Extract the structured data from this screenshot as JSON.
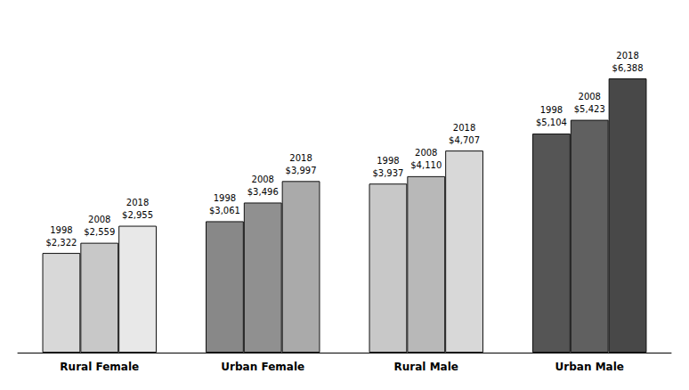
{
  "chart_data": {
    "type": "bar",
    "categories": [
      "Rural Female",
      "Urban Female",
      "Rural Male",
      "Urban Male"
    ],
    "series": [
      {
        "name": "1998",
        "values": [
          2322,
          3061,
          3937,
          5104
        ],
        "value_labels": [
          "$2,322",
          "$3,061",
          "$3,937",
          "$5,104"
        ],
        "colors": [
          "#d8d8d8",
          "#888888",
          "#c8c8c8",
          "#555555"
        ]
      },
      {
        "name": "2008",
        "values": [
          2559,
          3496,
          4110,
          5423
        ],
        "value_labels": [
          "$2,559",
          "$3,496",
          "$4,110",
          "$5,423"
        ],
        "colors": [
          "#c8c8c8",
          "#909090",
          "#b8b8b8",
          "#606060"
        ]
      },
      {
        "name": "2018",
        "values": [
          2955,
          3997,
          4707,
          6388
        ],
        "value_labels": [
          "$2,955",
          "$3,997",
          "$4,707",
          "$6,388"
        ],
        "colors": [
          "#e8e8e8",
          "#aaaaaa",
          "#d8d8d8",
          "#484848"
        ]
      }
    ],
    "ylim": [
      0,
      7800
    ],
    "data_labels": true,
    "tick_labels": "x",
    "grid": false
  }
}
